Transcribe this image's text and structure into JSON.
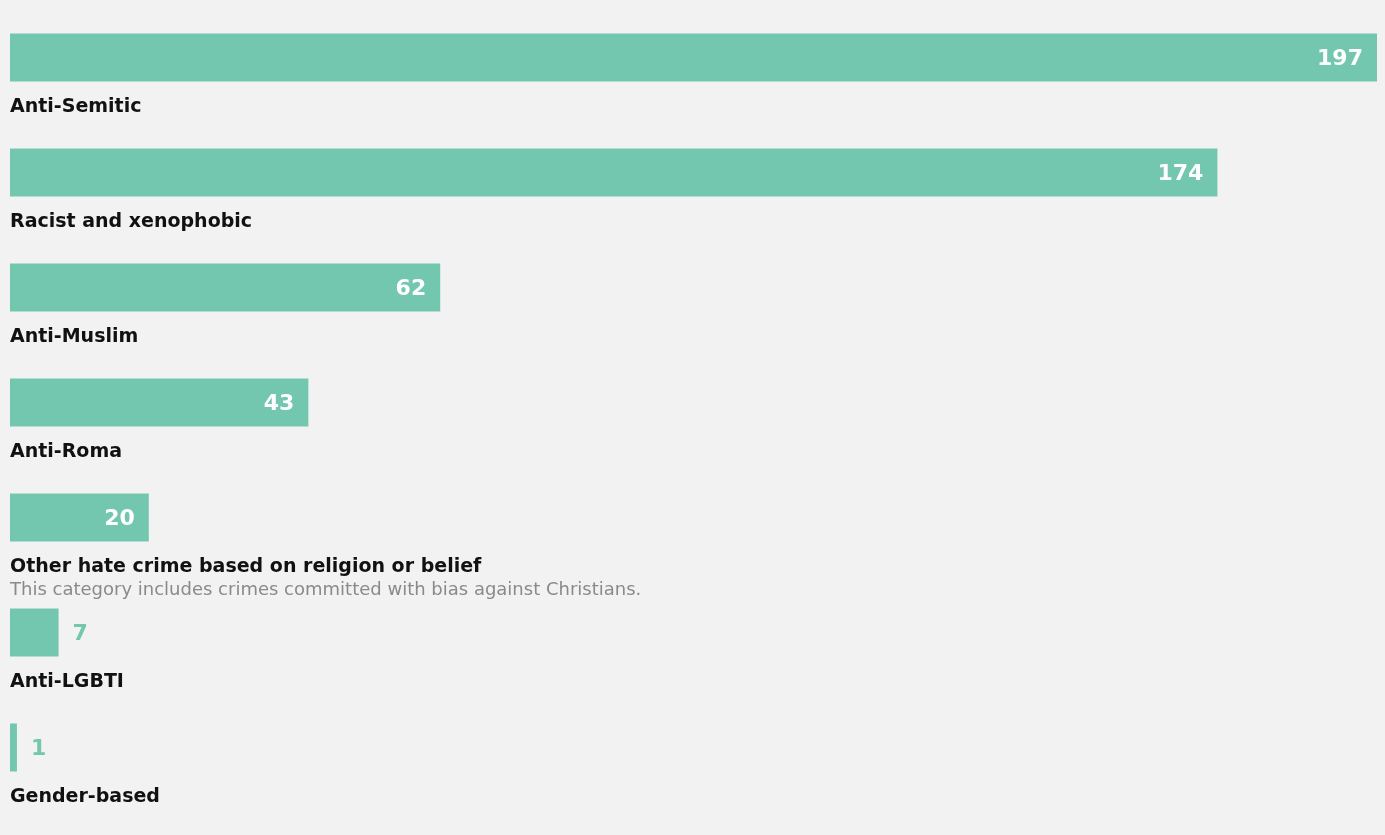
{
  "chart_data": {
    "type": "bar",
    "orientation": "horizontal",
    "data_labels": true,
    "color": "#72c7ae",
    "categories": [
      "Anti-Semitic",
      "Racist and xenophobic",
      "Anti-Muslim",
      "Anti-Roma",
      "Other hate crime based on religion or belief",
      "Anti-LGBTI",
      "Gender-based"
    ],
    "values": [
      197,
      174,
      62,
      43,
      20,
      7,
      1
    ],
    "annotations": [
      "This category includes crimes committed with bias against Christians."
    ]
  }
}
